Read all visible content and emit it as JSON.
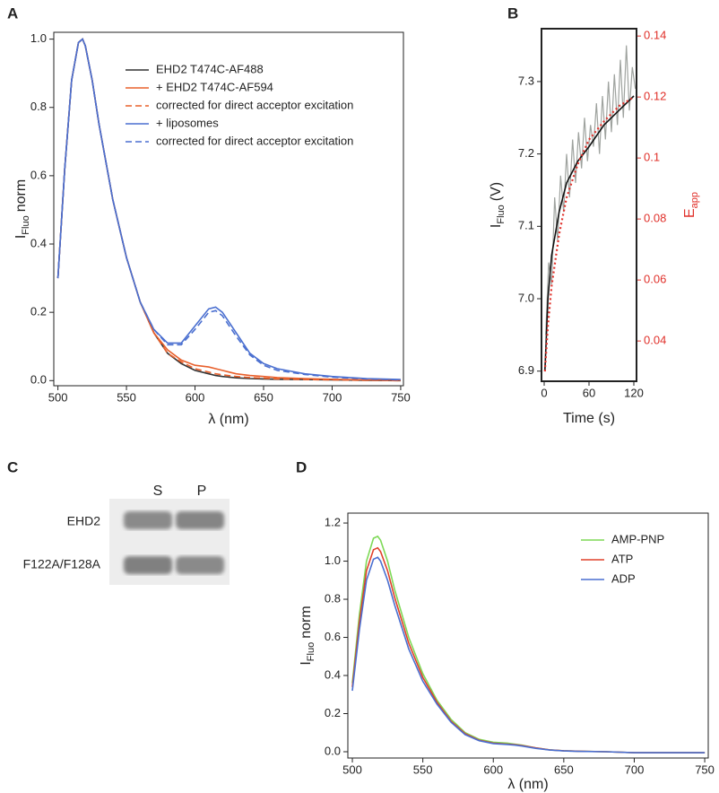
{
  "chart_data": [
    {
      "type": "line",
      "label": "A",
      "xlabel": "λ (nm)",
      "ylabel": {
        "text": "I",
        "sub": "Fluo",
        "suffix": "norm"
      },
      "x": [
        500,
        505,
        510,
        515,
        518,
        520,
        525,
        530,
        540,
        550,
        560,
        570,
        580,
        590,
        600,
        610,
        615,
        620,
        630,
        640,
        650,
        660,
        680,
        700,
        725,
        750
      ],
      "series": [
        {
          "name": "EHD2 T474C-AF488",
          "color": "#333333",
          "dash": "solid",
          "values": [
            0.3,
            0.62,
            0.88,
            0.99,
            1.0,
            0.98,
            0.88,
            0.75,
            0.53,
            0.36,
            0.23,
            0.14,
            0.08,
            0.05,
            0.03,
            0.02,
            0.015,
            0.012,
            0.008,
            0.006,
            0.005,
            0.004,
            0.003,
            0.002,
            0.001,
            0.0
          ]
        },
        {
          "name": "+ EHD2 T474C-AF594",
          "color": "#e8602c",
          "dash": "solid",
          "values": [
            0.3,
            0.62,
            0.88,
            0.99,
            1.0,
            0.98,
            0.88,
            0.75,
            0.53,
            0.36,
            0.23,
            0.14,
            0.09,
            0.06,
            0.045,
            0.04,
            0.035,
            0.03,
            0.02,
            0.015,
            0.012,
            0.009,
            0.006,
            0.004,
            0.002,
            0.001
          ]
        },
        {
          "name": "corrected for direct acceptor excitation",
          "color": "#e8602c",
          "dash": "dashed",
          "values": [
            0.3,
            0.62,
            0.88,
            0.99,
            1.0,
            0.98,
            0.88,
            0.75,
            0.53,
            0.36,
            0.23,
            0.14,
            0.08,
            0.055,
            0.035,
            0.025,
            0.02,
            0.017,
            0.012,
            0.009,
            0.007,
            0.005,
            0.003,
            0.002,
            0.001,
            0.0
          ]
        },
        {
          "name": "+ liposomes",
          "color": "#4a6fd0",
          "dash": "solid",
          "values": [
            0.3,
            0.62,
            0.88,
            0.99,
            1.0,
            0.98,
            0.88,
            0.75,
            0.53,
            0.36,
            0.23,
            0.15,
            0.11,
            0.11,
            0.16,
            0.21,
            0.215,
            0.2,
            0.14,
            0.08,
            0.05,
            0.035,
            0.02,
            0.012,
            0.006,
            0.003
          ]
        },
        {
          "name": "corrected for direct acceptor excitation",
          "color": "#4a6fd0",
          "dash": "dashed",
          "values": [
            0.3,
            0.62,
            0.88,
            0.99,
            1.0,
            0.98,
            0.88,
            0.75,
            0.53,
            0.36,
            0.23,
            0.15,
            0.105,
            0.105,
            0.15,
            0.2,
            0.205,
            0.19,
            0.13,
            0.075,
            0.045,
            0.03,
            0.018,
            0.01,
            0.005,
            0.002
          ]
        }
      ],
      "xlim": [
        497,
        752
      ],
      "xticks": [
        500,
        550,
        600,
        650,
        700,
        750
      ],
      "ylim": [
        -0.015,
        1.02
      ],
      "yticks": [
        {
          "value": 0,
          "label": "0.0"
        },
        0.2,
        0.4,
        0.6,
        0.8,
        {
          "value": 1,
          "label": "1.0"
        }
      ]
    },
    {
      "type": "line",
      "label": "B",
      "xlabel": "Time (s)",
      "ylabel": {
        "text": "I",
        "sub": "Fluo",
        "suffix": "(V)"
      },
      "y2label": {
        "text": "E",
        "sub": "app"
      },
      "y2color": "#e0302a",
      "series": [
        {
          "color": "#9fa39f",
          "dash": "solid",
          "x": [
            2,
            6,
            10,
            14,
            18,
            22,
            26,
            30,
            34,
            38,
            42,
            46,
            50,
            54,
            58,
            62,
            66,
            70,
            74,
            78,
            82,
            86,
            90,
            94,
            98,
            102,
            106,
            110,
            114,
            118,
            122
          ],
          "values": [
            6.95,
            7.05,
            7.02,
            7.14,
            7.08,
            7.17,
            7.12,
            7.2,
            7.14,
            7.22,
            7.16,
            7.23,
            7.18,
            7.25,
            7.19,
            7.24,
            7.21,
            7.27,
            7.2,
            7.28,
            7.22,
            7.3,
            7.23,
            7.31,
            7.24,
            7.33,
            7.25,
            7.35,
            7.26,
            7.32,
            7.29
          ]
        },
        {
          "color": "#111111",
          "dash": "solid",
          "x": [
            1,
            5,
            10,
            20,
            30,
            45,
            60,
            80,
            100,
            120
          ],
          "values": [
            6.9,
            7.0,
            7.06,
            7.12,
            7.16,
            7.19,
            7.21,
            7.24,
            7.26,
            7.28
          ]
        },
        {
          "color": "#e0302a",
          "dash": "dotted",
          "axis": "y2",
          "x": [
            1,
            5,
            10,
            20,
            30,
            45,
            60,
            80,
            100,
            120
          ],
          "values": [
            0.03,
            0.045,
            0.058,
            0.075,
            0.087,
            0.098,
            0.106,
            0.112,
            0.117,
            0.12
          ]
        }
      ],
      "xlim": [
        -3.6,
        123.6
      ],
      "xticks": [
        0,
        60,
        120
      ],
      "ylim": [
        6.886,
        7.373
      ],
      "yticks": [
        6.9,
        {
          "value": 7,
          "label": "7.0"
        },
        7.1,
        7.2,
        7.3
      ],
      "y2lim": [
        0.0268,
        0.1424
      ],
      "y2ticks": [
        0.04,
        0.06,
        0.08,
        0.1,
        0.12,
        0.14
      ]
    },
    {
      "type": "line",
      "label": "D",
      "xlabel": "λ (nm)",
      "ylabel": {
        "text": "I",
        "sub": "Fluo",
        "suffix": "norm"
      },
      "x": [
        500,
        505,
        510,
        515,
        518,
        520,
        525,
        530,
        540,
        550,
        560,
        570,
        580,
        590,
        600,
        610,
        615,
        620,
        630,
        640,
        650,
        660,
        680,
        700,
        725,
        750
      ],
      "series": [
        {
          "name": "AMP-PNP",
          "color": "#7ed957",
          "dash": "solid",
          "values": [
            0.36,
            0.72,
            1.0,
            1.12,
            1.13,
            1.11,
            1.0,
            0.85,
            0.6,
            0.41,
            0.27,
            0.17,
            0.1,
            0.065,
            0.05,
            0.045,
            0.04,
            0.035,
            0.02,
            0.01,
            0.005,
            0.003,
            0.0,
            -0.005,
            -0.005,
            -0.005
          ]
        },
        {
          "name": "ATP",
          "color": "#e0402a",
          "dash": "solid",
          "values": [
            0.34,
            0.68,
            0.95,
            1.06,
            1.07,
            1.05,
            0.95,
            0.81,
            0.57,
            0.39,
            0.26,
            0.16,
            0.095,
            0.06,
            0.045,
            0.04,
            0.037,
            0.033,
            0.02,
            0.01,
            0.005,
            0.003,
            0.0,
            -0.005,
            -0.005,
            -0.005
          ]
        },
        {
          "name": "ADP",
          "color": "#4a6fd0",
          "dash": "solid",
          "values": [
            0.32,
            0.64,
            0.9,
            1.01,
            1.02,
            1.0,
            0.9,
            0.77,
            0.54,
            0.37,
            0.25,
            0.155,
            0.09,
            0.058,
            0.043,
            0.038,
            0.035,
            0.03,
            0.018,
            0.009,
            0.004,
            0.002,
            0.0,
            -0.005,
            -0.005,
            -0.005
          ]
        }
      ],
      "xlim": [
        496.8,
        752.5
      ],
      "xticks": [
        500,
        550,
        600,
        650,
        700,
        750
      ],
      "ylim": [
        -0.033,
        1.252
      ],
      "yticks": [
        {
          "value": 0,
          "label": "0.0"
        },
        0.2,
        0.4,
        0.6,
        0.8,
        {
          "value": 1,
          "label": "1.0"
        },
        1.2
      ]
    }
  ],
  "gel": {
    "label": "C",
    "columns": [
      "S",
      "P"
    ],
    "rows": [
      "EHD2",
      "F122A/F128A"
    ]
  }
}
